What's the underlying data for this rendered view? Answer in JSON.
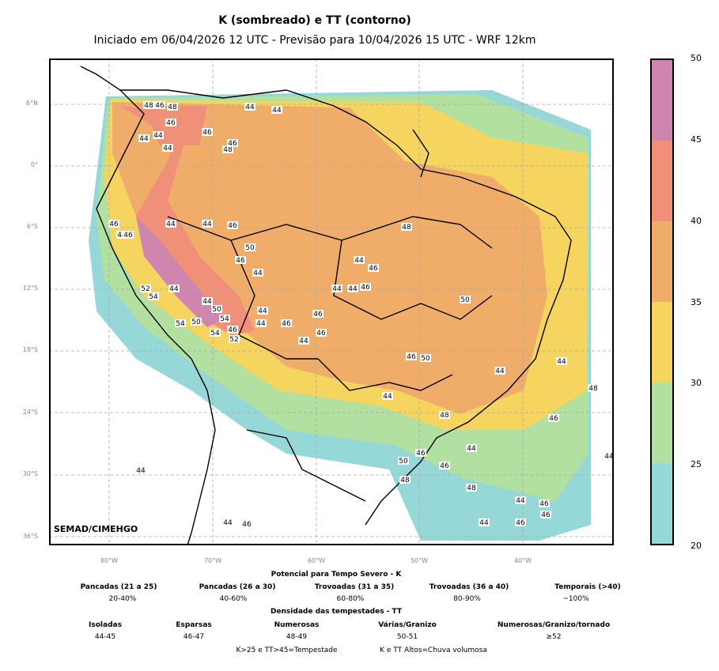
{
  "title": "K (sombreado) e TT (contorno)",
  "subtitle": "Iniciado em 06/04/2026 12 UTC - Previsão para 10/04/2026 15 UTC - WRF 12km",
  "credit": "SEMAD/CIMEHGO",
  "lat_labels": [
    "6°N",
    "0°",
    "6°S",
    "12°S",
    "18°S",
    "24°S",
    "30°S",
    "36°S"
  ],
  "lon_labels": [
    "80°W",
    "70°W",
    "60°W",
    "50°W",
    "40°W"
  ],
  "colorbar": {
    "ticks": [
      "20",
      "25",
      "30",
      "35",
      "40",
      "45",
      "50"
    ],
    "colors": [
      "#96d7d7",
      "#b1e0a0",
      "#f5d460",
      "#f0ad6a",
      "#f09078",
      "#cf86ae"
    ]
  },
  "tt_labels": [
    "48",
    "46",
    "48",
    "44",
    "44",
    "46",
    "46",
    "48",
    "44",
    "44",
    "44",
    "46",
    "44",
    "46",
    "44",
    "46",
    "44",
    "46",
    "48",
    "50",
    "46",
    "44",
    "44",
    "46",
    "44",
    "46",
    "44",
    "52",
    "54",
    "44",
    "44",
    "50",
    "54",
    "54",
    "50",
    "54",
    "46",
    "52",
    "44",
    "44",
    "46",
    "46",
    "46",
    "44",
    "46",
    "50",
    "50",
    "44",
    "44",
    "48",
    "46",
    "48",
    "44",
    "44",
    "46",
    "50",
    "48",
    "44",
    "46",
    "48",
    "44",
    "44",
    "46",
    "46",
    "46",
    "44",
    "46",
    "44"
  ],
  "legend": {
    "k_title": "Potencial para Tempo Severo - K",
    "k_items": [
      {
        "name": "Pancadas (21 a 25)",
        "pct": "20-40%"
      },
      {
        "name": "Pancadas (26 a 30)",
        "pct": "40-60%"
      },
      {
        "name": "Trovoadas (31 a 35)",
        "pct": "60-80%"
      },
      {
        "name": "Trovoadas (36 a 40)",
        "pct": "80-90%"
      },
      {
        "name": "Temporais (>40)",
        "pct": "~100%"
      }
    ],
    "tt_title": "Densidade das tempestades - TT",
    "tt_items": [
      {
        "name": "Isoladas",
        "range": "44-45"
      },
      {
        "name": "Esparsas",
        "range": "46-47"
      },
      {
        "name": "Numerosas",
        "range": "48-49"
      },
      {
        "name": "Várias/Granizo",
        "range": "50-51"
      },
      {
        "name": "Numerosas/Granizo/tornado",
        "range": "≥52"
      }
    ],
    "note1": "K>25 e TT>45=Tempestade",
    "note2": "K e TT Altos=Chuva volumosa"
  }
}
